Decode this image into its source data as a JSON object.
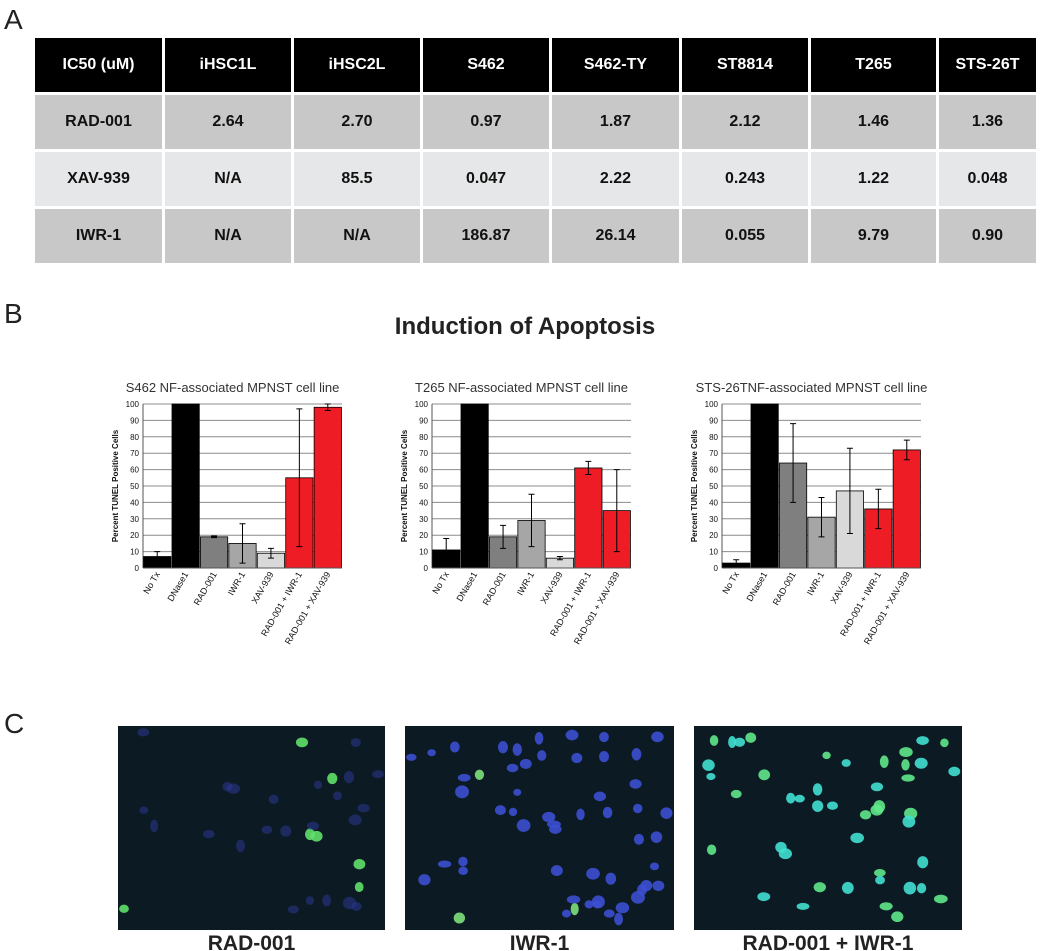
{
  "panel_labels": [
    "A",
    "B",
    "C"
  ],
  "table": {
    "header": [
      "IC50 (uM)",
      "iHSC1L",
      "iHSC2L",
      "S462",
      "S462-TY",
      "ST8814",
      "T265",
      "STS-26T"
    ],
    "rows": [
      [
        "RAD-001",
        "2.64",
        "2.70",
        "0.97",
        "1.87",
        "2.12",
        "1.46",
        "1.36"
      ],
      [
        "XAV-939",
        "N/A",
        "85.5",
        "0.047",
        "2.22",
        "0.243",
        "1.22",
        "0.048"
      ],
      [
        "IWR-1",
        "N/A",
        "N/A",
        "186.87",
        "26.14",
        "0.055",
        "9.79",
        "0.90"
      ]
    ]
  },
  "figure_title": "Induction of Apoptosis",
  "chart_data": [
    {
      "type": "bar",
      "title": "S462 NF-associated MPNST cell line",
      "y_label": "Percent TUNEL Positive Cells",
      "categories": [
        "No Tx",
        "DNase1",
        "RAD-001",
        "IWR-1",
        "XAV-939",
        "RAD-001 + IWR-1",
        "RAD-001 + XAV-939"
      ],
      "values": [
        7,
        100,
        19,
        15,
        9,
        55,
        98
      ],
      "errors": [
        3,
        null,
        0.5,
        12,
        3,
        42,
        2
      ],
      "colors": [
        "#000000",
        "#000000",
        "#7f7f7f",
        "#a6a6a6",
        "#d9d9d9",
        "#ee1c24",
        "#ee1c24"
      ],
      "ylim": [
        0,
        100
      ],
      "yticks": [
        0,
        10,
        20,
        30,
        40,
        50,
        60,
        70,
        80,
        90,
        100
      ],
      "grid": true
    },
    {
      "type": "bar",
      "title": "T265 NF-associated MPNST cell line",
      "y_label": "Percent TUNEL Positive Cells",
      "categories": [
        "No Tx",
        "DNase1",
        "RAD-001",
        "IWR-1",
        "XAV-939",
        "RAD-001 + IWR-1",
        "RAD-001 + XAV-939"
      ],
      "values": [
        11,
        100,
        19,
        29,
        6,
        61,
        35
      ],
      "errors": [
        7,
        null,
        7,
        16,
        1,
        4,
        25
      ],
      "colors": [
        "#000000",
        "#000000",
        "#7f7f7f",
        "#a6a6a6",
        "#d9d9d9",
        "#ee1c24",
        "#ee1c24"
      ],
      "ylim": [
        0,
        100
      ],
      "yticks": [
        0,
        10,
        20,
        30,
        40,
        50,
        60,
        70,
        80,
        90,
        100
      ],
      "grid": true
    },
    {
      "type": "bar",
      "title": "STS-26TNF-associated MPNST cell line",
      "y_label": "Percent TUNEL Positive Cells",
      "categories": [
        "No Tx",
        "DNase1",
        "RAD-001",
        "IWR-1",
        "XAV-939",
        "RAD-001 + IWR-1",
        "RAD-001 + XAV-939"
      ],
      "values": [
        3,
        100,
        64,
        31,
        47,
        36,
        72
      ],
      "errors": [
        2,
        null,
        24,
        12,
        26,
        12,
        6
      ],
      "colors": [
        "#000000",
        "#000000",
        "#7f7f7f",
        "#a6a6a6",
        "#d9d9d9",
        "#ee1c24",
        "#ee1c24"
      ],
      "ylim": [
        0,
        100
      ],
      "yticks": [
        0,
        10,
        20,
        30,
        40,
        50,
        60,
        70,
        80,
        90,
        100
      ],
      "grid": true
    }
  ],
  "images": [
    {
      "caption": "RAD-001"
    },
    {
      "caption": "IWR-1"
    },
    {
      "caption": "RAD-001 + IWR-1"
    }
  ]
}
